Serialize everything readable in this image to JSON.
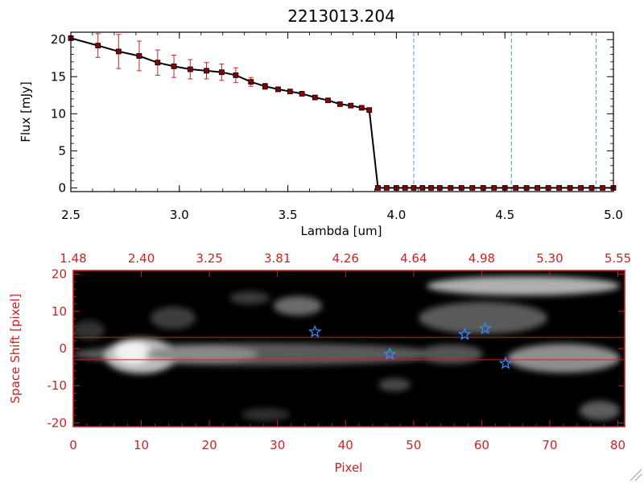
{
  "title": "2213013.204",
  "chart_data": [
    {
      "type": "line",
      "xlabel": "Lambda [um]",
      "ylabel": "Flux [mJy]",
      "xlim": [
        2.5,
        5.0
      ],
      "ylim": [
        -0.5,
        21
      ],
      "x_ticks": [
        "2.5",
        "3.0",
        "3.5",
        "4.0",
        "4.5",
        "5.0"
      ],
      "y_ticks": [
        "0",
        "5",
        "10",
        "15",
        "20"
      ],
      "series": [
        {
          "color": "#000000",
          "marker_color": "#8b0000",
          "error_color": "#cc2222",
          "x": [
            2.5,
            2.625,
            2.72,
            2.815,
            2.9,
            2.975,
            3.05,
            3.125,
            3.195,
            3.26,
            3.33,
            3.395,
            3.455,
            3.51,
            3.565,
            3.625,
            3.685,
            3.74,
            3.79,
            3.84,
            3.875,
            3.915,
            3.955,
            4.0,
            4.04,
            4.08,
            4.12,
            4.16,
            4.2,
            4.25,
            4.3,
            4.35,
            4.4,
            4.45,
            4.5,
            4.55,
            4.6,
            4.65,
            4.7,
            4.75,
            4.8,
            4.85,
            4.9,
            4.95,
            5.0
          ],
          "y": [
            20.2,
            19.2,
            18.4,
            17.8,
            16.9,
            16.4,
            16.0,
            15.8,
            15.6,
            15.2,
            14.3,
            13.7,
            13.3,
            13.0,
            12.7,
            12.2,
            11.8,
            11.3,
            11.1,
            10.8,
            10.5,
            0.0,
            0.0,
            0.0,
            0.0,
            0.0,
            0.0,
            0.0,
            0.0,
            0.0,
            0.0,
            0.0,
            0.0,
            0.0,
            0.0,
            0.0,
            0.0,
            0.0,
            0.0,
            0.0,
            0.0,
            0.0,
            0.0,
            0.0,
            0.0
          ],
          "yerr": [
            0.3,
            1.6,
            2.3,
            2.0,
            1.7,
            1.5,
            1.3,
            1.1,
            1.1,
            1.0,
            0.6,
            0.4,
            0.3,
            0.2,
            0.2,
            0.2,
            0.2,
            0.2,
            0.2,
            0.2,
            0.2,
            0.05,
            0.05,
            0.05,
            0.05,
            0.05,
            0.05,
            0.05,
            0.05,
            0.05,
            0.05,
            0.05,
            0.05,
            0.05,
            0.05,
            0.05,
            0.05,
            0.05,
            0.05,
            0.05,
            0.05,
            0.05,
            0.05,
            0.05,
            0.05
          ]
        }
      ],
      "vlines": [
        4.08,
        4.53,
        4.92
      ],
      "vline_color": "#4499dd",
      "grid": false
    },
    {
      "type": "heatmap",
      "xlabel": "Pixel",
      "ylabel": "Space Shift [pixel]",
      "xlim": [
        0,
        81
      ],
      "ylim": [
        -21,
        21
      ],
      "x_ticks": [
        "0",
        "10",
        "20",
        "30",
        "40",
        "50",
        "60",
        "70",
        "80"
      ],
      "y_ticks": [
        "-20",
        "-10",
        "0",
        "10",
        "20"
      ],
      "top_axis_ticks": [
        "1.48",
        "2.40",
        "3.25",
        "3.81",
        "4.26",
        "4.64",
        "4.98",
        "5.30",
        "5.55"
      ],
      "axis_color": "#cc2222",
      "hlines": [
        3,
        -3
      ],
      "hline_color": "#cc2222",
      "stars": [
        {
          "x": 35.5,
          "y": 4.5
        },
        {
          "x": 46.5,
          "y": -1.5
        },
        {
          "x": 57.5,
          "y": 3.8
        },
        {
          "x": 60.5,
          "y": 5.4
        },
        {
          "x": 63.5,
          "y": -4.0
        }
      ],
      "star_color": "#3388ff"
    }
  ]
}
